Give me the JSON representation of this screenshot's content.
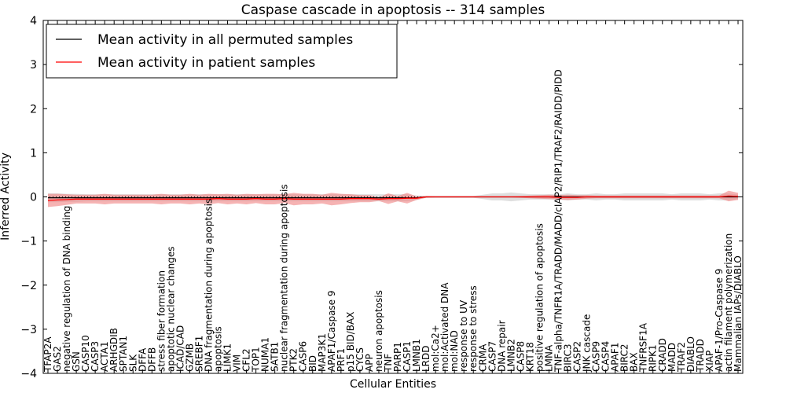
{
  "chart_data": {
    "type": "line",
    "title": "Caspase cascade in apoptosis -- 314 samples",
    "xlabel": "Cellular Entities",
    "ylabel": "Inferred Activity",
    "ylim": [
      -4,
      4
    ],
    "yticks": [
      -4,
      -3,
      -2,
      -1,
      0,
      1,
      2,
      3,
      4
    ],
    "ytick_labels": [
      "−4",
      "−3",
      "−2",
      "−1",
      "0",
      "1",
      "2",
      "3",
      "4"
    ],
    "legend_position": "top-left",
    "categories": [
      "TFAP2A",
      "GAS2",
      "negative regulation of DNA binding",
      "GSN",
      "CASP10",
      "CASP3",
      "ACTA1",
      "ARHGDIB",
      "SPTAN1",
      "SLK",
      "DFFA",
      "DFFB",
      "stress fiber formation",
      "apoptotic nuclear changes",
      "ICAD/CAD",
      "GZMB",
      "SREBF1",
      "DNA fragmentation during apoptosis",
      "apoptosis",
      "LIMK1",
      "VIM",
      "CFL2",
      "TOP1",
      "NUMA1",
      "SATB1",
      "nuclear fragmentation during apoptosis",
      "PTK2",
      "CASP6",
      "BID",
      "MAP3K1",
      "APAF1/Caspase 9",
      "PRF1",
      "p15 BID/BAX",
      "CYCS",
      "APP",
      "neuron apoptosis",
      "TNF",
      "PARP1",
      "CASP1",
      "LMNB1",
      "LRDD",
      "mol:Ca2+",
      "mol:Activated DNA",
      "mol:NAD",
      "response to UV",
      "response to stress",
      "CRMA",
      "CASP7",
      "DNA repair",
      "LMNB2",
      "CASP8",
      "KRT18",
      "positive regulation of apoptosis",
      "LMNA",
      "TNF-alpha/TNFR1A/TRADD/MADD/cIAP2/RIP1/TRAF2/RAIDD/PIDD",
      "BIRC3",
      "CASP2",
      "JNK cascade",
      "CASP9",
      "CASP4",
      "APAF1",
      "BIRC2",
      "BAX",
      "TNFRSF1A",
      "RIPK1",
      "CRADD",
      "MADD",
      "TRAF2",
      "DIABLO",
      "TRADD",
      "XIAP",
      "APAF-1/Pro-Caspase 9",
      "actin filament polymerization",
      "Mammalian IAPs/DIABLO"
    ],
    "series": [
      {
        "name": "Mean activity in all permuted samples",
        "color": "#000000",
        "band_color": "#b8b8b8",
        "values": [
          -0.02,
          -0.02,
          -0.02,
          -0.02,
          -0.02,
          -0.02,
          -0.02,
          -0.02,
          -0.02,
          -0.02,
          -0.02,
          -0.02,
          -0.02,
          -0.02,
          -0.02,
          -0.02,
          -0.02,
          -0.02,
          -0.02,
          -0.02,
          -0.02,
          -0.02,
          -0.02,
          -0.02,
          -0.02,
          -0.02,
          -0.02,
          -0.02,
          -0.02,
          -0.02,
          -0.02,
          -0.02,
          -0.02,
          -0.02,
          -0.02,
          -0.02,
          -0.02,
          -0.02,
          -0.02,
          -0.02,
          0,
          0,
          0,
          0,
          0,
          0,
          0,
          0,
          0,
          0,
          0,
          0,
          0,
          0,
          0,
          0,
          0,
          0,
          0,
          0,
          0,
          0,
          0,
          0,
          0,
          0,
          0,
          0,
          0,
          0,
          0,
          0,
          0,
          0
        ],
        "band": [
          0.1,
          0.1,
          0.09,
          0.09,
          0.08,
          0.08,
          0.08,
          0.08,
          0.08,
          0.08,
          0.08,
          0.08,
          0.08,
          0.08,
          0.08,
          0.08,
          0.08,
          0.08,
          0.08,
          0.08,
          0.08,
          0.08,
          0.08,
          0.08,
          0.08,
          0.08,
          0.08,
          0.08,
          0.08,
          0.08,
          0.08,
          0.08,
          0.08,
          0.08,
          0.08,
          0.08,
          0.08,
          0.08,
          0.08,
          0.05,
          0.02,
          0.02,
          0.02,
          0.02,
          0.02,
          0.02,
          0.05,
          0.08,
          0.08,
          0.1,
          0.08,
          0.06,
          0.06,
          0.06,
          0.06,
          0.08,
          0.06,
          0.06,
          0.08,
          0.06,
          0.06,
          0.08,
          0.08,
          0.08,
          0.08,
          0.08,
          0.06,
          0.08,
          0.08,
          0.08,
          0.06,
          0.08,
          0.08,
          0.05
        ]
      },
      {
        "name": "Mean activity in patient samples",
        "color": "#ff0000",
        "band_color": "#f08080",
        "values": [
          -0.08,
          -0.07,
          -0.06,
          -0.05,
          -0.05,
          -0.05,
          -0.05,
          -0.05,
          -0.05,
          -0.05,
          -0.05,
          -0.05,
          -0.05,
          -0.05,
          -0.05,
          -0.05,
          -0.05,
          -0.05,
          -0.04,
          -0.05,
          -0.05,
          -0.05,
          -0.04,
          -0.05,
          -0.05,
          -0.04,
          -0.05,
          -0.05,
          -0.05,
          -0.05,
          -0.05,
          -0.05,
          -0.04,
          -0.04,
          -0.04,
          -0.05,
          -0.04,
          -0.04,
          -0.03,
          -0.03,
          0,
          0,
          0,
          0,
          0,
          0,
          0,
          0,
          0,
          0,
          0,
          0,
          0,
          0,
          -0.01,
          -0.01,
          -0.01,
          0,
          0,
          0,
          0,
          0,
          0,
          0,
          0,
          0,
          0,
          0,
          0,
          0,
          0,
          0,
          0.02,
          0.01
        ],
        "band": [
          0.15,
          0.14,
          0.12,
          0.1,
          0.1,
          0.1,
          0.12,
          0.1,
          0.1,
          0.1,
          0.1,
          0.1,
          0.12,
          0.1,
          0.1,
          0.12,
          0.1,
          0.12,
          0.1,
          0.12,
          0.1,
          0.12,
          0.1,
          0.12,
          0.12,
          0.1,
          0.14,
          0.12,
          0.12,
          0.1,
          0.14,
          0.12,
          0.1,
          0.08,
          0.08,
          0.04,
          0.12,
          0.06,
          0.12,
          0.04,
          0.02,
          0.01,
          0.01,
          0.01,
          0.01,
          0.01,
          0.01,
          0.01,
          0.01,
          0.01,
          0.02,
          0.03,
          0.04,
          0.05,
          0.05,
          0.06,
          0.05,
          0.04,
          0.03,
          0.03,
          0.03,
          0.03,
          0.03,
          0.03,
          0.03,
          0.03,
          0.03,
          0.03,
          0.03,
          0.03,
          0.03,
          0.03,
          0.12,
          0.08
        ]
      }
    ]
  }
}
